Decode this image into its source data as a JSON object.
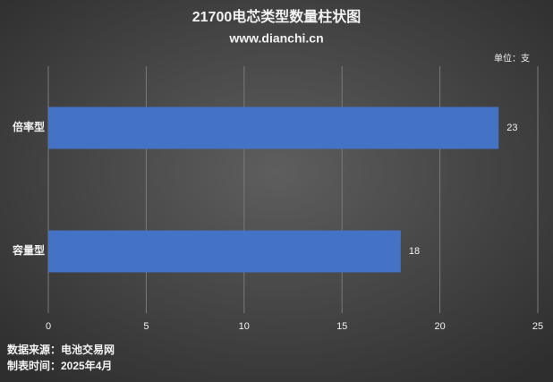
{
  "chart_data": {
    "type": "bar",
    "orientation": "horizontal",
    "title": "21700电芯类型数量柱状图",
    "subtitle": "www.dianchi.cn",
    "unit": "单位：支",
    "categories": [
      "倍率型",
      "容量型"
    ],
    "values": [
      23,
      18
    ],
    "color": "#4472c4",
    "xlim": [
      0,
      25
    ],
    "xticks": [
      0,
      5,
      10,
      15,
      20,
      25
    ],
    "grid": true,
    "source": "数据来源：电池交易网",
    "note": "制表时间：2025年4月"
  }
}
